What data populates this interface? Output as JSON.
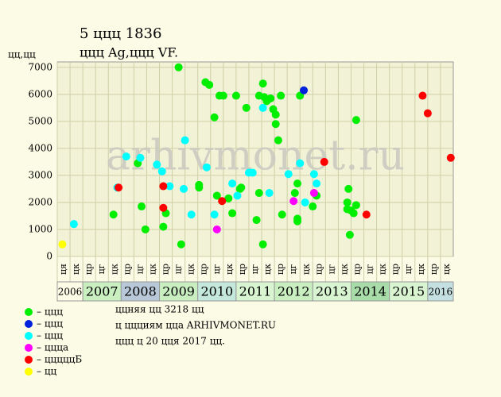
{
  "chart_data": {
    "type": "scatter",
    "title": "5 ццц 1836",
    "subtitle": "ццц Ag,ццц VF.",
    "y_label": "цц,цц",
    "watermark": "arhivmonet.ru",
    "xlim": [
      0,
      31
    ],
    "ylim": [
      0,
      7200
    ],
    "yticks": [
      0,
      1000,
      2000,
      3000,
      4000,
      5000,
      6000,
      7000
    ],
    "grid": true,
    "x_labels": [
      "ця",
      "цк",
      "цр",
      "цг",
      "цк",
      "цр",
      "цг",
      "цк",
      "цр",
      "цг",
      "цк",
      "цр",
      "цг",
      "цк",
      "цр",
      "цг",
      "цк",
      "цр",
      "цг",
      "цк",
      "цр",
      "цг",
      "цк",
      "цр",
      "цг",
      "цк",
      "цр",
      "цг",
      "цк",
      "цр",
      "цк"
    ],
    "years": [
      {
        "label": "2006",
        "columns": 2,
        "color": "#fbfbe6"
      },
      {
        "label": "2007",
        "columns": 3,
        "color": "#c9eec0"
      },
      {
        "label": "2008",
        "columns": 3,
        "color": "#b9c8d8"
      },
      {
        "label": "2009",
        "columns": 3,
        "color": "#c9eec0"
      },
      {
        "label": "2010",
        "columns": 3,
        "color": "#c4e8dc"
      },
      {
        "label": "2011",
        "columns": 3,
        "color": "#d8f4d0"
      },
      {
        "label": "2012",
        "columns": 3,
        "color": "#c9eec0"
      },
      {
        "label": "2013",
        "columns": 3,
        "color": "#d8f4d0"
      },
      {
        "label": "2014",
        "columns": 3,
        "color": "#a8dca8"
      },
      {
        "label": "2015",
        "columns": 3,
        "color": "#d8f4d0"
      },
      {
        "label": "2016",
        "columns": 2,
        "color": "#c4e0e0"
      }
    ],
    "series": [
      {
        "name": "– ццц",
        "color": "#00ee00",
        "x": [
          4.4,
          6.3,
          6.6,
          6.9,
          8.3,
          8.5,
          9.5,
          9.7,
          11.1,
          11.1,
          11.6,
          11.9,
          12.3,
          12.5,
          12.7,
          13.0,
          13.4,
          13.7,
          14.0,
          14.3,
          14.4,
          14.8,
          15.6,
          15.8,
          15.8,
          16.1,
          16.1,
          16.2,
          16.4,
          16.7,
          16.9,
          17.1,
          17.1,
          17.3,
          17.5,
          17.6,
          18.6,
          18.8,
          18.8,
          18.8,
          19.0,
          20.0,
          20.3,
          22.7,
          22.7,
          22.8,
          22.9,
          23.0,
          23.2,
          23.4,
          23.4
        ],
        "values": [
          1550,
          3450,
          1850,
          1000,
          1100,
          1600,
          7000,
          450,
          2650,
          2550,
          6450,
          6350,
          5150,
          2250,
          5950,
          5950,
          2150,
          1600,
          5950,
          2500,
          2550,
          5500,
          1350,
          2350,
          5950,
          6400,
          450,
          5900,
          5750,
          5850,
          5450,
          5250,
          4900,
          4300,
          5950,
          1550,
          2350,
          2700,
          1300,
          1400,
          5950,
          1850,
          2250,
          2000,
          1750,
          2500,
          800,
          1700,
          1600,
          1900,
          5050
        ]
      },
      {
        "name": "– ццц",
        "color": "#0022dd",
        "x": [
          19.3
        ],
        "values": [
          6150
        ]
      },
      {
        "name": "– ццц",
        "color": "#00ffff",
        "x": [
          1.3,
          4.7,
          5.4,
          6.5,
          7.8,
          8.2,
          8.8,
          9.9,
          10.0,
          10.5,
          11.7,
          12.3,
          13.7,
          14.1,
          15.0,
          15.3,
          16.1,
          16.6,
          18.1,
          19.0,
          19.4,
          20.1,
          20.3
        ],
        "values": [
          1200,
          2550,
          3700,
          3650,
          3400,
          3150,
          2600,
          2500,
          4300,
          1550,
          3300,
          1550,
          2700,
          2250,
          3100,
          3100,
          5500,
          2350,
          3050,
          3450,
          2000,
          3050,
          2700
        ]
      },
      {
        "name": "– ццца",
        "color": "#ff00ff",
        "x": [
          12.5,
          18.5,
          20.1
        ],
        "values": [
          1000,
          2050,
          2350
        ]
      },
      {
        "name": "– цццццБ",
        "color": "#ff0000",
        "x": [
          4.8,
          8.3,
          8.3,
          12.9,
          20.9,
          24.2,
          28.6,
          29.0,
          30.8
        ],
        "values": [
          2550,
          2600,
          1800,
          2050,
          3500,
          1550,
          5950,
          5300,
          3650
        ]
      },
      {
        "name": "– цц",
        "color": "#ffff00",
        "x": [
          0.4
        ],
        "values": [
          450
        ]
      }
    ],
    "notes": [
      "ццняя цц 3218 цц",
      "ц ццциям цца ARHIVMONET.RU",
      "ццц ц 20 цця 2017 цц."
    ]
  }
}
